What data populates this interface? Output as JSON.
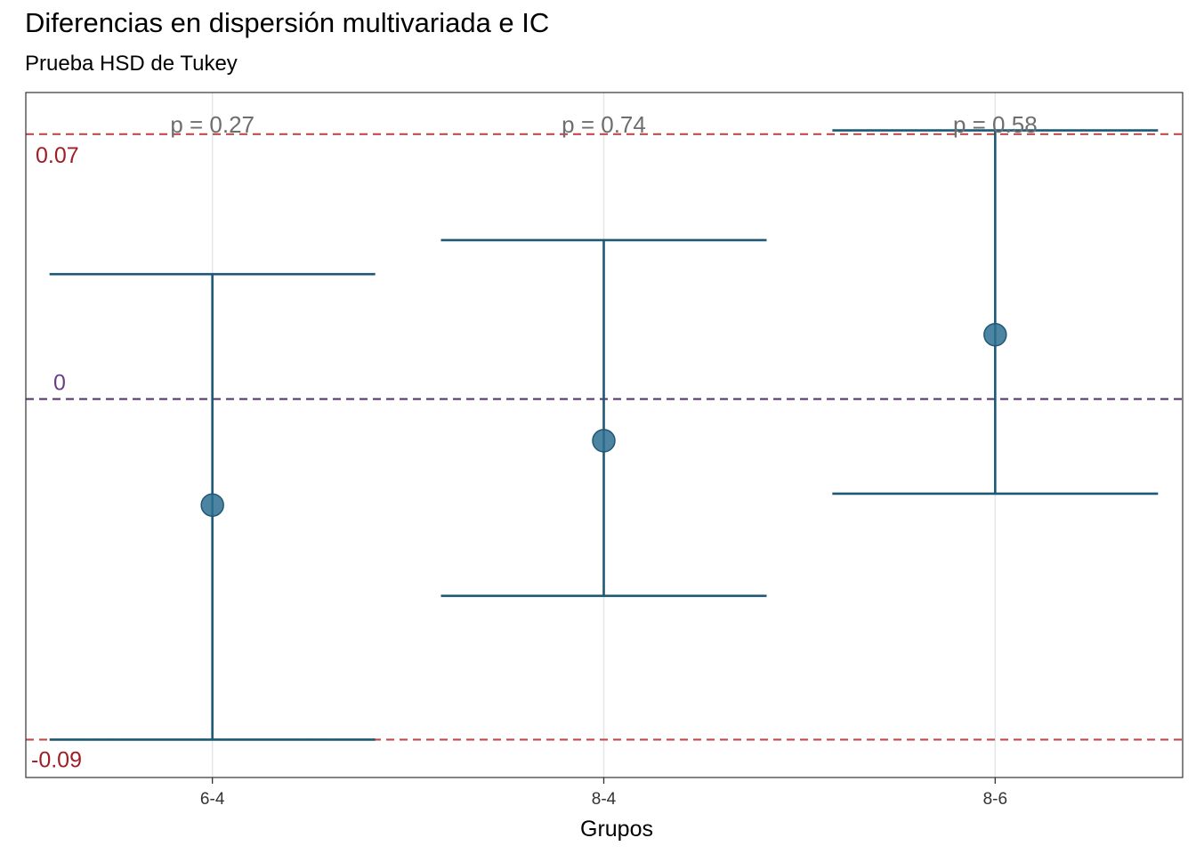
{
  "title": "Diferencias en dispersión multivariada e IC",
  "subtitle": "Prueba HSD de Tukey",
  "chart_data": {
    "type": "errorbar",
    "title": "Diferencias en dispersión multivariada e IC",
    "subtitle": "Prueba HSD de Tukey",
    "xlabel": "Grupos",
    "ylabel": "",
    "categories": [
      "6-4",
      "8-4",
      "8-6"
    ],
    "diff": [
      -0.028,
      -0.011,
      0.017
    ],
    "lwr": [
      -0.09,
      -0.052,
      -0.025
    ],
    "upr": [
      0.033,
      0.042,
      0.071
    ],
    "p_labels": [
      "p =  0.27",
      "p =  0.74",
      "p =  0.58"
    ],
    "ylim": [
      -0.1,
      0.081
    ],
    "reference_lines": [
      {
        "value": 0.07,
        "label": "0.07",
        "color": "#c04b4f"
      },
      {
        "value": 0,
        "label": "0",
        "color": "#5b3570"
      },
      {
        "value": -0.09,
        "label": "-0.09",
        "color": "#c04b4f"
      }
    ],
    "colors": {
      "errorbar": "#1d5874",
      "point": "#2e6f91",
      "upper_lower_line": "#c04b4f",
      "upper_lower_text": "#a01d26",
      "zero_line": "#5b3570",
      "zero_text": "#6a3d86",
      "grid": "#e6e6e6",
      "p_text": "#6e6e6e"
    },
    "grid": "vertical major only",
    "legend": "none"
  }
}
